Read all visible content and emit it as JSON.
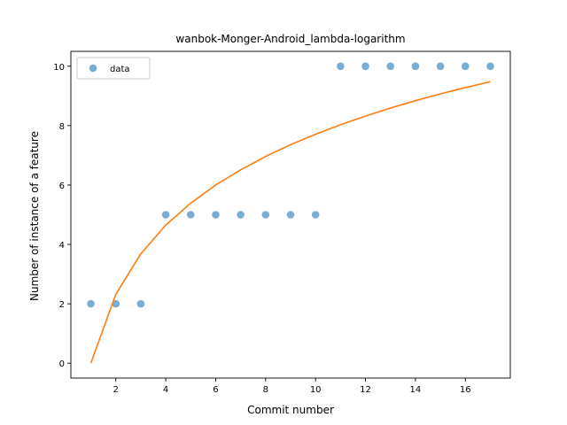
{
  "chart_data": {
    "type": "scatter",
    "title": "wanbok-Monger-Android_lambda-logarithm",
    "xlabel": "Commit number",
    "ylabel": "Number of instance of a feature",
    "xlim": [
      0.2,
      17.8
    ],
    "ylim": [
      -0.5,
      10.5
    ],
    "xticks": [
      2,
      4,
      6,
      8,
      10,
      12,
      14,
      16
    ],
    "yticks": [
      0,
      2,
      4,
      6,
      8,
      10
    ],
    "grid": false,
    "legend_position": "top-left",
    "series": [
      {
        "name": "data",
        "kind": "scatter",
        "color": "#1f77b4",
        "x": [
          1,
          2,
          3,
          4,
          5,
          6,
          7,
          8,
          9,
          10,
          11,
          12,
          13,
          14,
          15,
          16,
          17
        ],
        "y": [
          2,
          2,
          2,
          5,
          5,
          5,
          5,
          5,
          5,
          5,
          10,
          10,
          10,
          10,
          10,
          10,
          10
        ]
      },
      {
        "kind": "line",
        "color": "#ff7f0e",
        "x": [
          1,
          2,
          3,
          4,
          5,
          6,
          7,
          8,
          9,
          10,
          11,
          12,
          13,
          14,
          15,
          16,
          17
        ],
        "y": [
          0.0,
          2.32,
          3.68,
          4.65,
          5.39,
          6.0,
          6.51,
          6.96,
          7.36,
          7.71,
          8.03,
          8.32,
          8.59,
          8.84,
          9.07,
          9.28,
          9.48
        ]
      }
    ]
  }
}
